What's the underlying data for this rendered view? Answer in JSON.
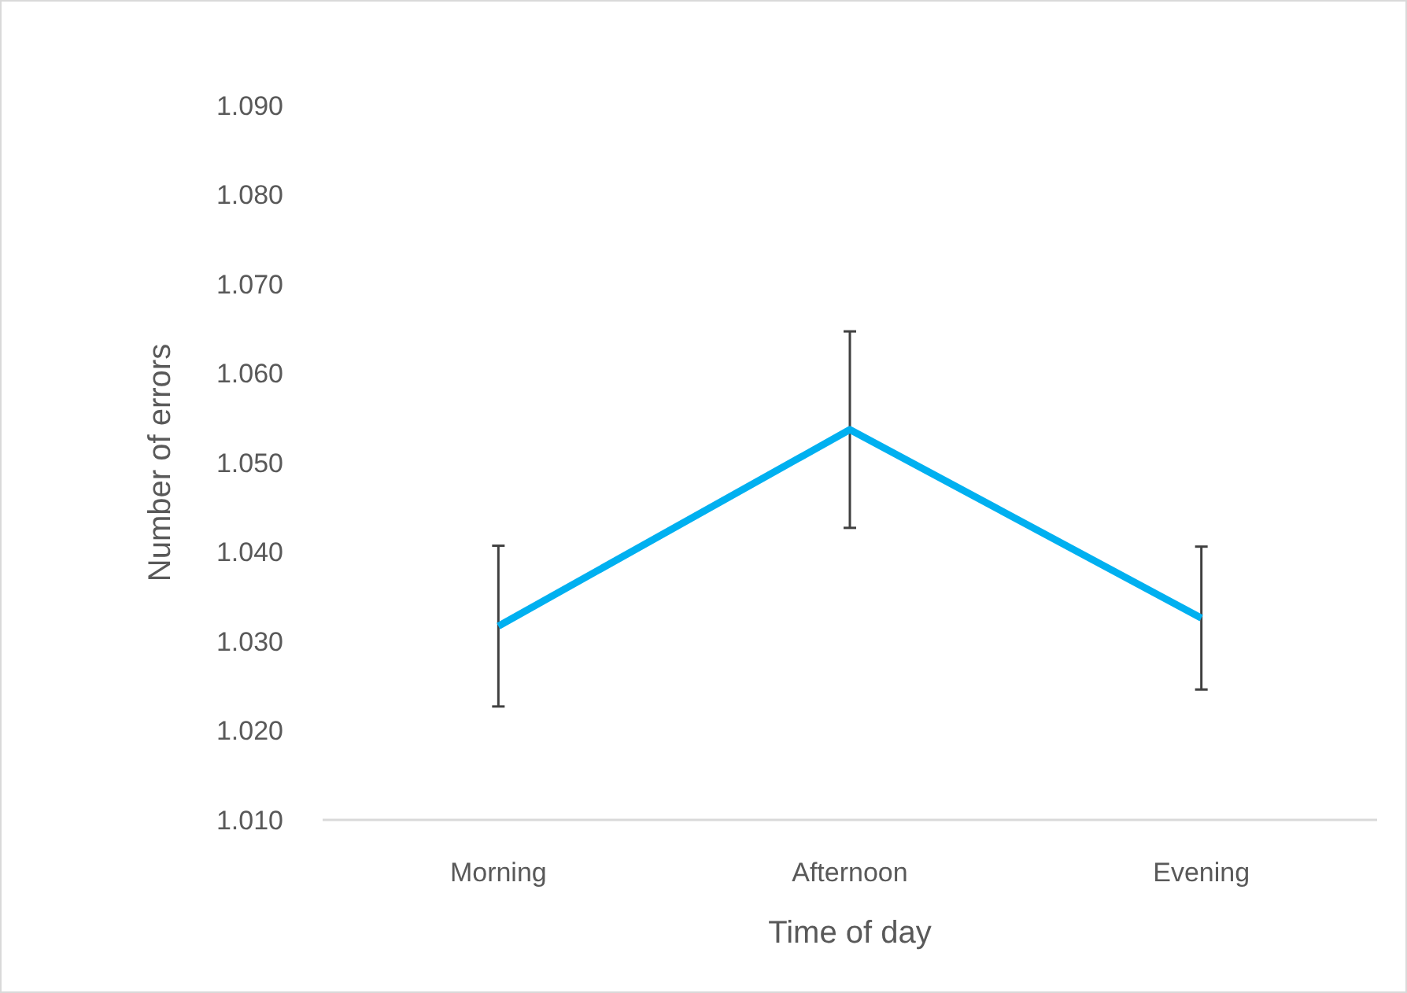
{
  "chart_data": {
    "type": "line",
    "xlabel": "Time of day",
    "ylabel": "Number of errors",
    "categories": [
      "Morning",
      "Afternoon",
      "Evening"
    ],
    "series": [
      {
        "color": "#00b0f0",
        "values": [
          1.0317,
          1.0537,
          1.0326
        ],
        "errors": [
          0.009,
          0.011,
          0.008
        ]
      }
    ],
    "ylim": [
      1.01,
      1.09
    ],
    "yticks": [
      {
        "value": 1.01,
        "label": "1.010"
      },
      {
        "value": 1.02,
        "label": "1.020"
      },
      {
        "value": 1.03,
        "label": "1.030"
      },
      {
        "value": 1.04,
        "label": "1.040"
      },
      {
        "value": 1.05,
        "label": "1.050"
      },
      {
        "value": 1.06,
        "label": "1.060"
      },
      {
        "value": 1.07,
        "label": "1.070"
      },
      {
        "value": 1.08,
        "label": "1.080"
      },
      {
        "value": 1.09,
        "label": "1.090"
      }
    ],
    "grid": false,
    "marker": "none",
    "line_style": "solid"
  }
}
